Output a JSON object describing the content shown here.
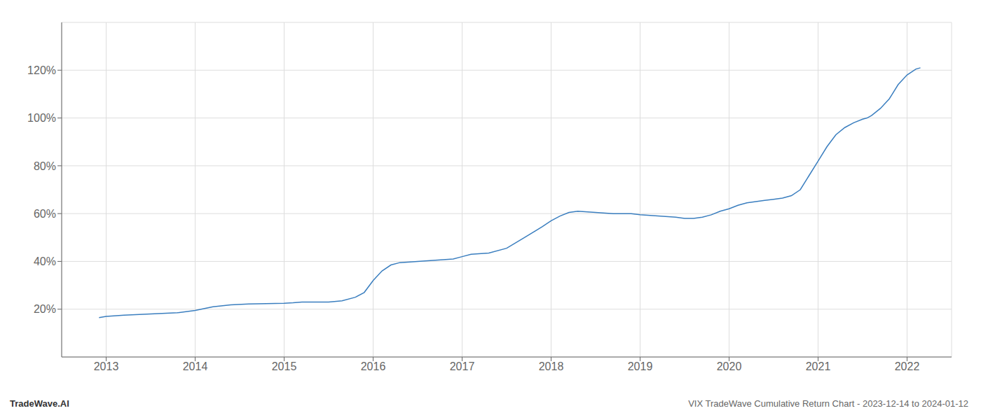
{
  "chart_data": {
    "type": "line",
    "annotations": [
      "TradeWave.AI",
      "VIX TradeWave Cumulative Return Chart - 2023-12-14 to 2024-01-12"
    ],
    "color": "#3a7ebf",
    "grid": true,
    "xlim": [
      2012.5,
      2022.5
    ],
    "xticks": [
      2013,
      2014,
      2015,
      2016,
      2017,
      2018,
      2019,
      2020,
      2021,
      2022
    ],
    "ylim": [
      0,
      140
    ],
    "yticks": [
      {
        "value": 20,
        "label": "20%"
      },
      {
        "value": 40,
        "label": "40%"
      },
      {
        "value": 60,
        "label": "60%"
      },
      {
        "value": 80,
        "label": "80%"
      },
      {
        "value": 100,
        "label": "100%"
      },
      {
        "value": 120,
        "label": "120%"
      }
    ],
    "x": [
      2012.92,
      2013.0,
      2013.2,
      2013.5,
      2013.8,
      2014.0,
      2014.2,
      2014.4,
      2014.6,
      2014.8,
      2015.0,
      2015.1,
      2015.2,
      2015.3,
      2015.4,
      2015.5,
      2015.65,
      2015.8,
      2015.9,
      2016.0,
      2016.1,
      2016.2,
      2016.3,
      2016.5,
      2016.7,
      2016.9,
      2017.0,
      2017.1,
      2017.3,
      2017.5,
      2017.7,
      2017.9,
      2018.0,
      2018.1,
      2018.2,
      2018.3,
      2018.5,
      2018.7,
      2018.9,
      2019.0,
      2019.2,
      2019.4,
      2019.5,
      2019.6,
      2019.7,
      2019.8,
      2019.9,
      2020.0,
      2020.1,
      2020.2,
      2020.3,
      2020.4,
      2020.5,
      2020.6,
      2020.65,
      2020.7,
      2020.8,
      2020.9,
      2021.0,
      2021.1,
      2021.2,
      2021.3,
      2021.4,
      2021.5,
      2021.55,
      2021.6,
      2021.7,
      2021.8,
      2021.9,
      2022.0,
      2022.1,
      2022.15
    ],
    "values": [
      16.5,
      17.0,
      17.5,
      18.0,
      18.5,
      19.5,
      21.0,
      21.8,
      22.2,
      22.3,
      22.5,
      22.7,
      23.0,
      23.0,
      23.0,
      23.0,
      23.5,
      25.0,
      27.0,
      32.0,
      36.0,
      38.5,
      39.5,
      40.0,
      40.5,
      41.0,
      42.0,
      43.0,
      43.5,
      45.5,
      50.0,
      54.5,
      57.0,
      59.0,
      60.5,
      61.0,
      60.5,
      60.0,
      60.0,
      59.5,
      59.0,
      58.5,
      58.0,
      58.0,
      58.5,
      59.5,
      61.0,
      62.0,
      63.5,
      64.5,
      65.0,
      65.5,
      66.0,
      66.5,
      67.0,
      67.5,
      70.0,
      76.0,
      82.0,
      88.0,
      93.0,
      96.0,
      98.0,
      99.5,
      100.0,
      101.0,
      104.0,
      108.0,
      114.0,
      118.0,
      120.5,
      121.0
    ]
  }
}
